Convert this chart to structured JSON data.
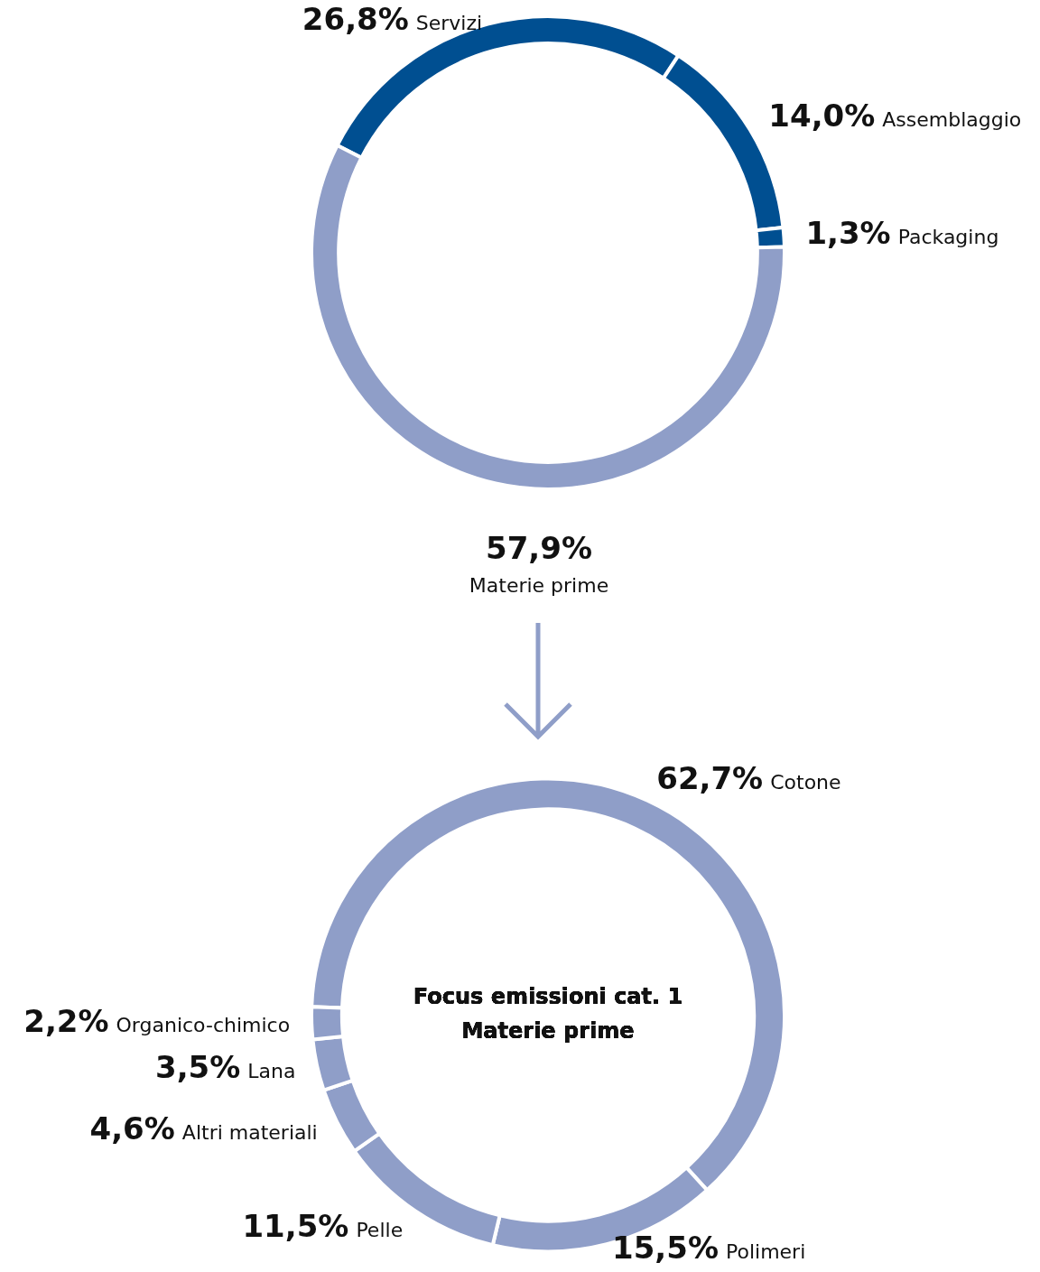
{
  "chart_data": [
    {
      "type": "donut",
      "categories": [
        "Servizi",
        "Assemblaggio",
        "Packaging",
        "Materie prime"
      ],
      "values": [
        26.8,
        14.0,
        1.3,
        57.9
      ],
      "value_labels": [
        "26,8%",
        "14,0%",
        "1,3%",
        "57,9%"
      ],
      "colors": [
        "#004f91",
        "#004f91",
        "#004f91",
        "#8f9ec8"
      ],
      "legend": false
    },
    {
      "type": "donut",
      "title": "Focus emissioni cat. 1\nMaterie prime",
      "categories": [
        "Cotone",
        "Polimeri",
        "Pelle",
        "Altri materiali",
        "Lana",
        "Organico-chimico"
      ],
      "values": [
        62.7,
        15.5,
        11.5,
        4.6,
        3.5,
        2.2
      ],
      "value_labels": [
        "62,7%",
        "15,5%",
        "11,5%",
        "4,6%",
        "3,5%",
        "2,2%"
      ],
      "colors": [
        "#8f9ec8",
        "#8f9ec8",
        "#8f9ec8",
        "#8f9ec8",
        "#8f9ec8",
        "#8f9ec8"
      ],
      "legend": false
    }
  ]
}
